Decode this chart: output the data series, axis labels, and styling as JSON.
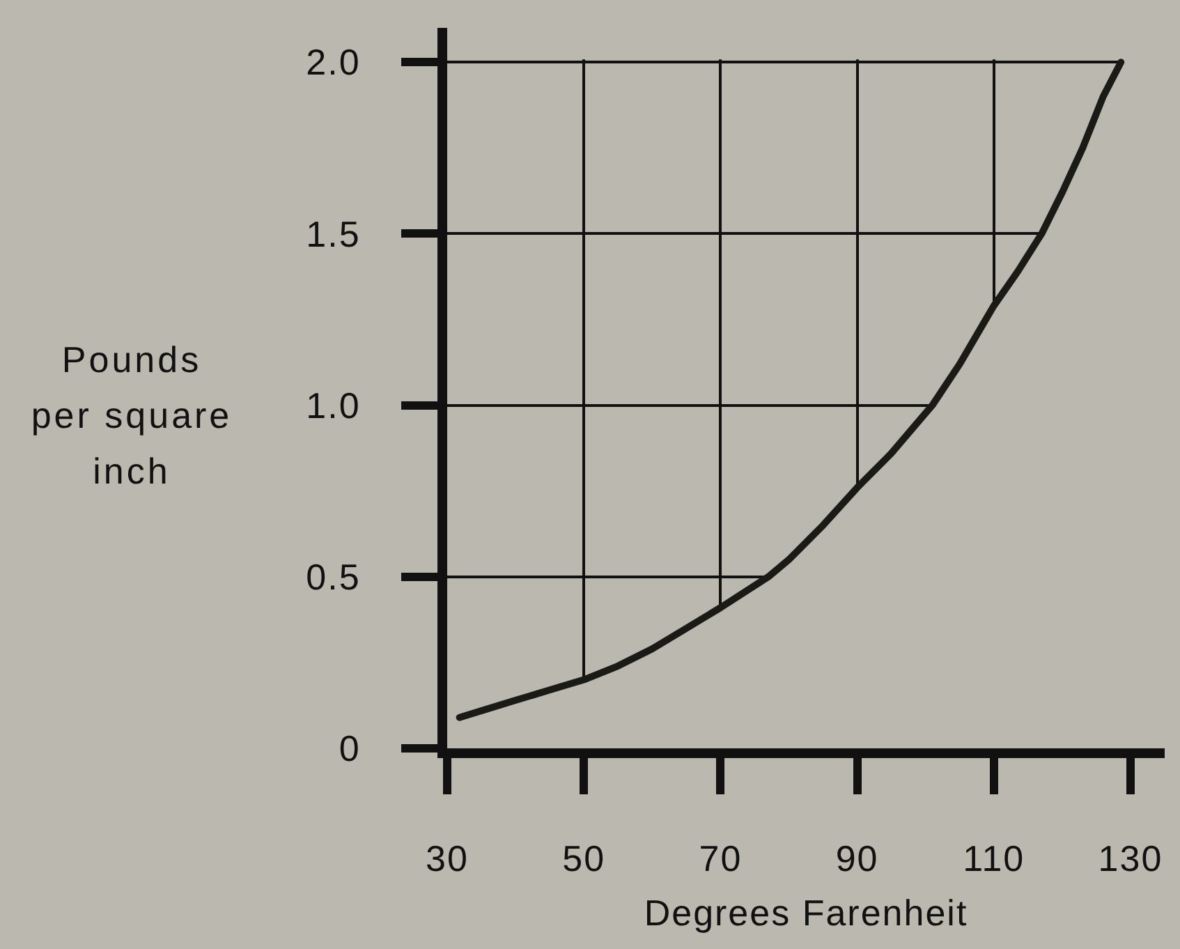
{
  "chart_data": {
    "type": "line",
    "xlabel": "Degrees Farenheit",
    "ylabel": "Pounds per square inch",
    "x": [
      31.8,
      40,
      45,
      50,
      55,
      60,
      65,
      70,
      77,
      80,
      85,
      90,
      95,
      101,
      105,
      110,
      113.5,
      117,
      120,
      123,
      126,
      128.6
    ],
    "series": [
      {
        "color": "#1a1a17",
        "values": [
          0.09,
          0.14,
          0.17,
          0.2,
          0.24,
          0.29,
          0.35,
          0.41,
          0.5,
          0.55,
          0.65,
          0.76,
          0.86,
          1.0,
          1.12,
          1.29,
          1.39,
          1.5,
          1.62,
          1.75,
          1.9,
          2.0
        ]
      }
    ],
    "xlim": [
      30,
      135
    ],
    "ylim": [
      0,
      2.1
    ],
    "xticks": [
      30,
      50,
      70,
      90,
      110,
      130
    ],
    "yticks": [
      0,
      0.5,
      {
        "value": 1,
        "label": "1.0"
      },
      1.5,
      {
        "value": 2,
        "label": "2.0"
      }
    ],
    "grid": true
  }
}
